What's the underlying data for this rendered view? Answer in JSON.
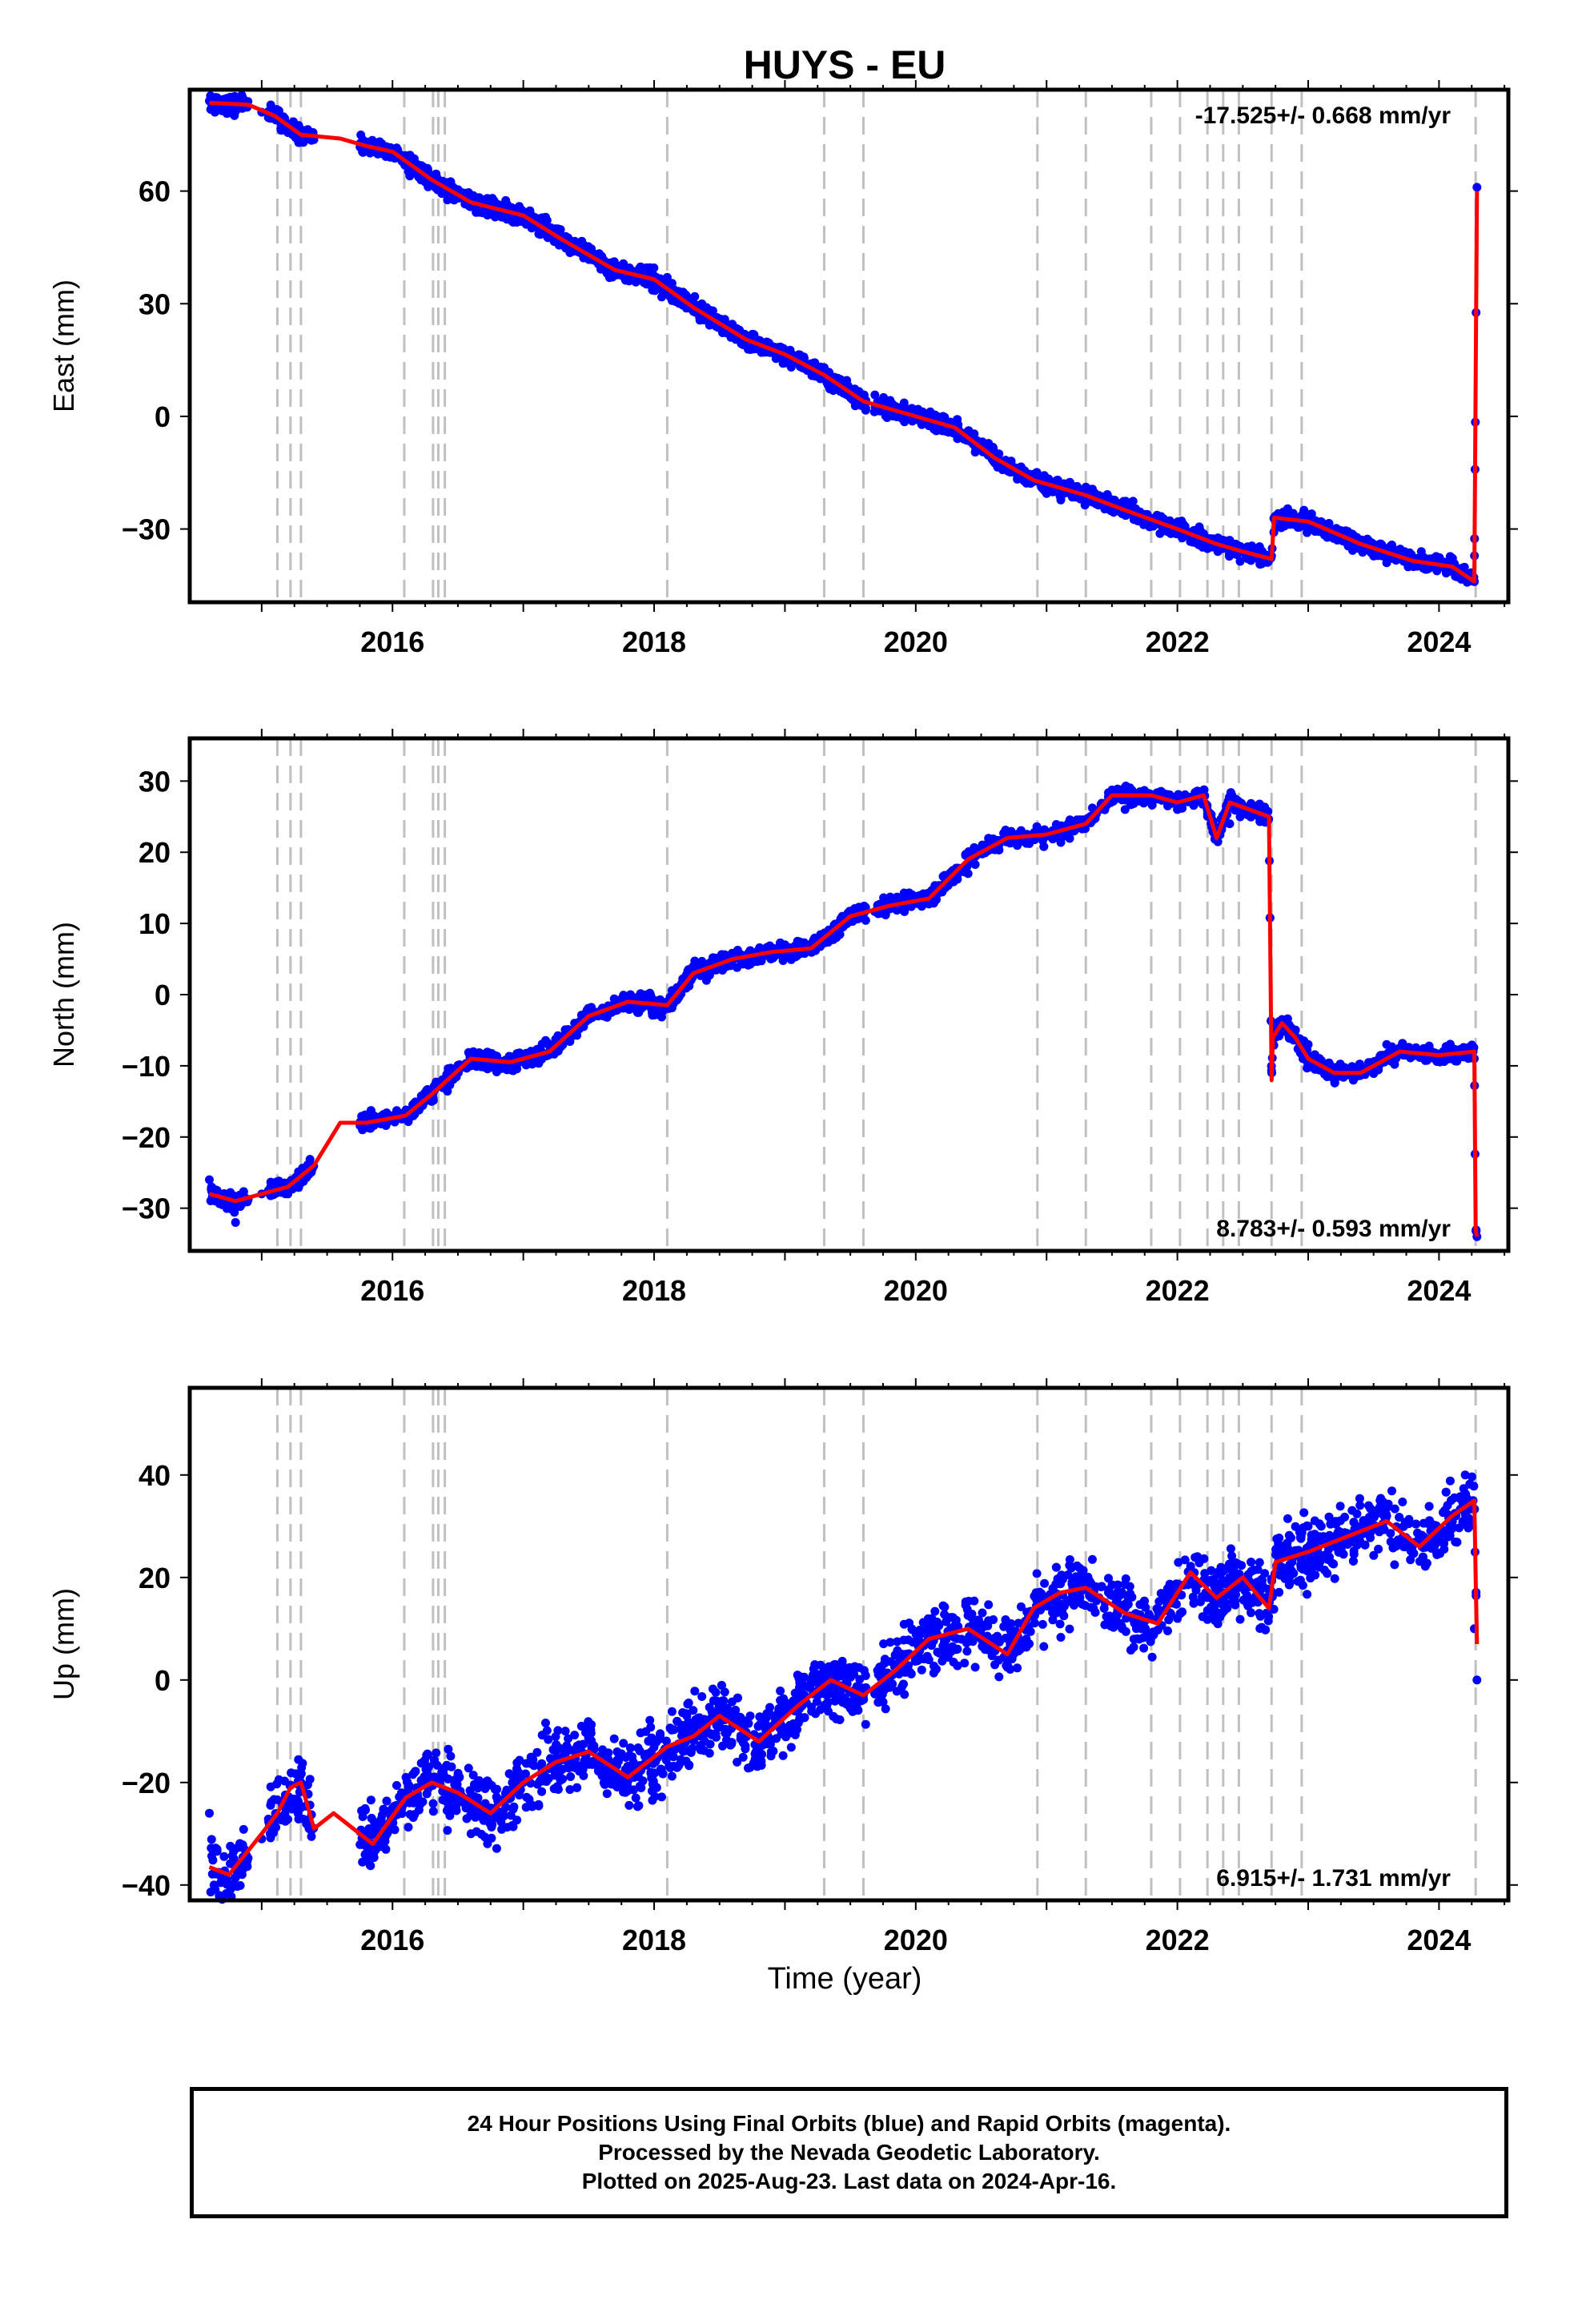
{
  "title": "HUYS - EU",
  "xlabel": "Time (year)",
  "footer": {
    "line1": "24 Hour Positions Using Final Orbits (blue) and Rapid Orbits (magenta).",
    "line2": "Processed by the Nevada Geodetic Laboratory.",
    "line3": "Plotted on 2025-Aug-23. Last data on 2024-Apr-16."
  },
  "colors": {
    "data": "#0000ff",
    "model": "#ff0000",
    "event_lines": "#c0c0c0"
  },
  "chart_data": [
    {
      "type": "scatter",
      "title": "HUYS - EU",
      "ylabel": "East (mm)",
      "xlabel": "",
      "xlim": [
        2014.45,
        2024.53
      ],
      "ylim": [
        -49.5,
        87
      ],
      "xticks": [
        2016,
        2018,
        2020,
        2022,
        2024
      ],
      "yticks": [
        -30,
        0,
        30,
        60
      ],
      "rate_label": "-17.525+/- 0.668 mm/yr",
      "rate_position": "top-right",
      "event_lines": [
        2015.12,
        2015.22,
        2015.3,
        2016.09,
        2016.31,
        2016.35,
        2016.4,
        2018.1,
        2019.3,
        2019.6,
        2020.93,
        2021.3,
        2021.8,
        2022.02,
        2022.23,
        2022.35,
        2022.47,
        2022.72,
        2022.95,
        2024.28
      ],
      "series": [
        {
          "kind": "points",
          "x": [
            2014.6,
            2014.8,
            2015.0,
            2015.2,
            2015.35,
            2015.8,
            2016.0,
            2016.3,
            2016.6,
            2017.0,
            2017.3,
            2017.7,
            2018.1,
            2018.4,
            2018.7,
            2019.0,
            2019.3,
            2019.6,
            2020.0,
            2020.4,
            2020.8,
            2021.2,
            2021.6,
            2022.0,
            2022.4,
            2022.6,
            2022.8,
            2023.0,
            2023.3,
            2023.6,
            2024.0,
            2024.27,
            2024.29
          ],
          "values": [
            84,
            82,
            81,
            77,
            75,
            72,
            70,
            63,
            56,
            54,
            47,
            39,
            37,
            29,
            21,
            17,
            13,
            5,
            1,
            -6,
            -16,
            -21,
            -26,
            -30,
            -33,
            -37,
            -28,
            -29,
            -34,
            -39,
            -40,
            -44,
            61
          ]
        },
        {
          "kind": "model",
          "x": [
            2014.6,
            2014.9,
            2015.1,
            2015.3,
            2015.6,
            2015.8,
            2016.0,
            2016.3,
            2016.6,
            2017.0,
            2017.3,
            2017.7,
            2018.0,
            2018.3,
            2018.7,
            2019.0,
            2019.3,
            2019.6,
            2020.0,
            2020.3,
            2020.6,
            2020.9,
            2021.3,
            2021.6,
            2022.0,
            2022.3,
            2022.5,
            2022.72,
            2022.74,
            2023.0,
            2023.4,
            2023.8,
            2024.1,
            2024.27,
            2024.28,
            2024.29
          ],
          "values": [
            83.5,
            83,
            80,
            75,
            74,
            72,
            70.5,
            63,
            57,
            53.5,
            47,
            39,
            36.5,
            29,
            20.5,
            16.5,
            11,
            4,
            0,
            -3,
            -11,
            -17,
            -21,
            -25,
            -30,
            -34,
            -36,
            -38,
            -27,
            -28,
            -34,
            -38.5,
            -40,
            -44,
            10,
            60
          ]
        }
      ]
    },
    {
      "type": "scatter",
      "title": "",
      "ylabel": "North (mm)",
      "xlabel": "",
      "xlim": [
        2014.45,
        2024.53
      ],
      "ylim": [
        -36,
        36
      ],
      "xticks": [
        2016,
        2018,
        2020,
        2022,
        2024
      ],
      "yticks": [
        -30,
        -20,
        -10,
        0,
        10,
        20,
        30
      ],
      "rate_label": "8.783+/- 0.593 mm/yr",
      "rate_position": "bottom-right",
      "event_lines": [
        2015.12,
        2015.22,
        2015.3,
        2016.09,
        2016.31,
        2016.35,
        2016.4,
        2018.1,
        2019.3,
        2019.6,
        2020.93,
        2021.3,
        2021.8,
        2022.02,
        2022.23,
        2022.35,
        2022.47,
        2022.72,
        2022.95,
        2024.28
      ],
      "series": [
        {
          "kind": "points",
          "x": [
            2014.6,
            2014.8,
            2015.0,
            2015.2,
            2015.35,
            2015.8,
            2016.0,
            2016.3,
            2016.6,
            2017.0,
            2017.3,
            2017.7,
            2018.1,
            2018.4,
            2018.7,
            2019.0,
            2019.3,
            2019.6,
            2020.0,
            2020.4,
            2020.8,
            2021.2,
            2021.6,
            2022.0,
            2022.4,
            2022.6,
            2022.75,
            2023.0,
            2023.3,
            2023.6,
            2024.0,
            2024.27,
            2024.29
          ],
          "values": [
            -26,
            -32,
            -28,
            -27,
            -24,
            -18,
            -17,
            -15,
            -10,
            -9,
            -6,
            -1,
            -1,
            2,
            5,
            7,
            8,
            12,
            13,
            17,
            22,
            23,
            26,
            26,
            24,
            26,
            -6,
            -7,
            -11,
            -7,
            -9,
            -9,
            -34
          ]
        },
        {
          "kind": "model",
          "x": [
            2014.6,
            2014.8,
            2015.0,
            2015.2,
            2015.4,
            2015.6,
            2015.8,
            2016.1,
            2016.3,
            2016.6,
            2016.9,
            2017.2,
            2017.5,
            2017.8,
            2018.1,
            2018.3,
            2018.6,
            2018.9,
            2019.2,
            2019.5,
            2019.8,
            2020.1,
            2020.4,
            2020.7,
            2021.0,
            2021.3,
            2021.5,
            2021.8,
            2022.0,
            2022.2,
            2022.3,
            2022.4,
            2022.7,
            2022.72,
            2022.73,
            2022.8,
            2022.9,
            2023.0,
            2023.2,
            2023.4,
            2023.7,
            2024.0,
            2024.27,
            2024.28,
            2024.29
          ],
          "values": [
            -28,
            -29,
            -28,
            -27,
            -24,
            -18,
            -18,
            -17,
            -14,
            -9,
            -9.5,
            -8,
            -3,
            -1,
            -1.5,
            3,
            5,
            6,
            6.5,
            11,
            12.5,
            13.5,
            19,
            22,
            22.5,
            24,
            28,
            28,
            27,
            28,
            22,
            27,
            25,
            -12,
            -6,
            -4,
            -6,
            -9,
            -11,
            -11,
            -8,
            -8.5,
            -8,
            -33,
            -34
          ]
        }
      ]
    },
    {
      "type": "scatter",
      "title": "",
      "ylabel": "Up (mm)",
      "xlabel": "Time (year)",
      "xlim": [
        2014.45,
        2024.53
      ],
      "ylim": [
        -43,
        57
      ],
      "xticks": [
        2016,
        2018,
        2020,
        2022,
        2024
      ],
      "yticks": [
        -40,
        -20,
        0,
        20,
        40
      ],
      "rate_label": "6.915+/- 1.731 mm/yr",
      "rate_position": "bottom-right",
      "event_lines": [
        2015.12,
        2015.22,
        2015.3,
        2016.09,
        2016.31,
        2016.35,
        2016.4,
        2018.1,
        2019.3,
        2019.6,
        2020.93,
        2021.3,
        2021.8,
        2022.02,
        2022.23,
        2022.35,
        2022.47,
        2022.72,
        2022.95,
        2024.28
      ],
      "series": [
        {
          "kind": "points",
          "x": [
            2014.6,
            2014.8,
            2015.0,
            2015.2,
            2015.3,
            2015.8,
            2016.0,
            2016.3,
            2016.6,
            2017.0,
            2017.3,
            2017.7,
            2018.1,
            2018.4,
            2018.7,
            2019.0,
            2019.3,
            2019.6,
            2020.0,
            2020.4,
            2020.8,
            2021.2,
            2021.6,
            2022.0,
            2022.4,
            2022.8,
            2023.0,
            2023.3,
            2023.6,
            2024.0,
            2024.2,
            2024.27,
            2024.29
          ],
          "values": [
            -26,
            -37,
            -31,
            -25,
            -20,
            -35,
            -25,
            -20,
            -30,
            -20,
            -15,
            -18,
            -15,
            -10,
            -8,
            -5,
            2,
            -3,
            5,
            8,
            6,
            18,
            14,
            12,
            20,
            22,
            30,
            28,
            32,
            28,
            40,
            10,
            0
          ]
        },
        {
          "kind": "model",
          "x": [
            2014.6,
            2014.75,
            2015.0,
            2015.12,
            2015.22,
            2015.3,
            2015.4,
            2015.55,
            2015.7,
            2015.85,
            2016.1,
            2016.3,
            2016.5,
            2016.75,
            2017.0,
            2017.25,
            2017.5,
            2017.8,
            2018.1,
            2018.3,
            2018.5,
            2018.8,
            2019.1,
            2019.35,
            2019.6,
            2019.85,
            2020.1,
            2020.4,
            2020.7,
            2020.9,
            2021.1,
            2021.3,
            2021.6,
            2021.85,
            2022.1,
            2022.3,
            2022.5,
            2022.7,
            2022.75,
            2023.0,
            2023.3,
            2023.6,
            2023.85,
            2024.1,
            2024.27,
            2024.28,
            2024.29
          ],
          "values": [
            -36.5,
            -38,
            -30,
            -26,
            -21,
            -20,
            -29,
            -26,
            -29,
            -32,
            -23,
            -20,
            -22,
            -26,
            -20,
            -16,
            -14,
            -19,
            -13,
            -11,
            -7,
            -12,
            -5,
            0,
            -3,
            2,
            8,
            10,
            5,
            14,
            17,
            18,
            13,
            11,
            21,
            16,
            20,
            14,
            23,
            25,
            28,
            31,
            26,
            32,
            35,
            20,
            7
          ]
        }
      ]
    }
  ]
}
